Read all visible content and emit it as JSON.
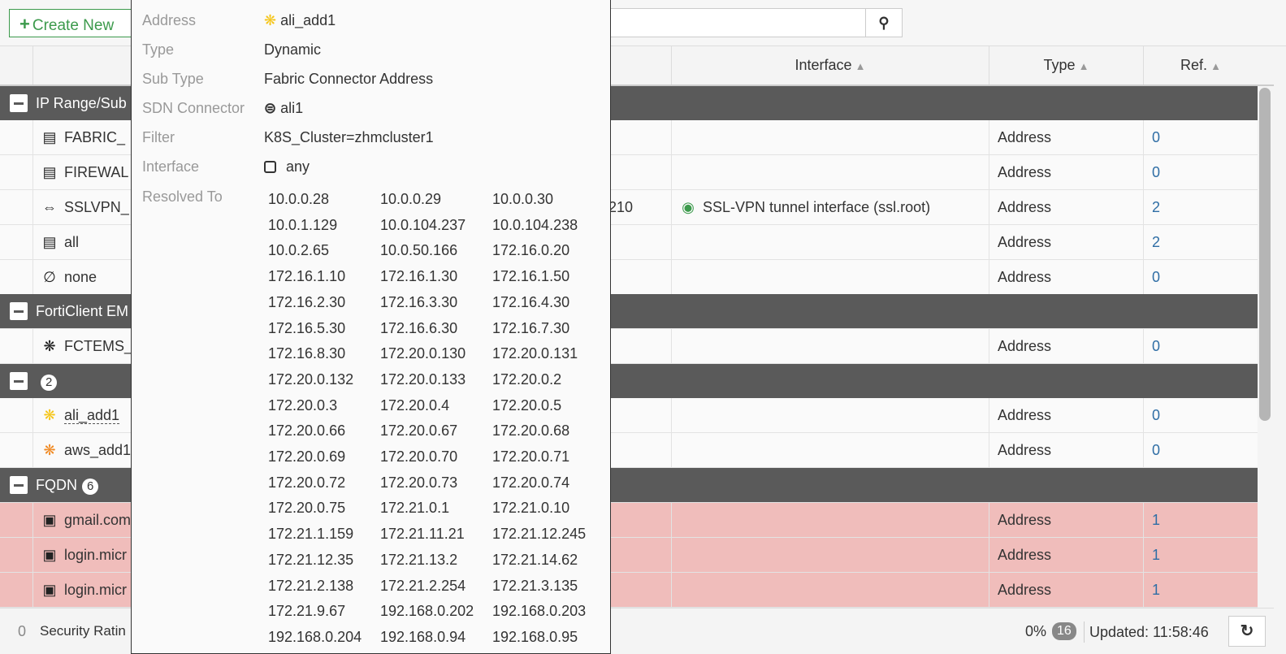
{
  "toolbar": {
    "create_label": "Create New"
  },
  "columns": {
    "interface": "Interface",
    "type": "Type",
    "ref": "Ref."
  },
  "groups": [
    {
      "label": "IP Range/Sub"
    },
    {
      "label": "FortiClient EM"
    },
    {
      "label": "",
      "count": "2"
    },
    {
      "label": "FQDN",
      "count": "6"
    }
  ],
  "rows": [
    {
      "name": "FABRIC_",
      "icon": "address-icon",
      "details": "",
      "interface": "",
      "type": "Address",
      "ref": "0"
    },
    {
      "name": "FIREWAL",
      "icon": "address-icon",
      "details": "",
      "interface": "",
      "type": "Address",
      "ref": "0"
    },
    {
      "name": "SSLVPN_",
      "icon": "iprange-icon",
      "details": "210",
      "interface": "SSL-VPN tunnel interface (ssl.root)",
      "type": "Address",
      "ref": "2"
    },
    {
      "name": "all",
      "icon": "address-icon",
      "details": "",
      "interface": "",
      "type": "Address",
      "ref": "2"
    },
    {
      "name": "none",
      "icon": "none-icon",
      "details": "",
      "interface": "",
      "type": "Address",
      "ref": "0"
    },
    {
      "name": "FCTEMS_",
      "icon": "ems-icon",
      "details": "",
      "interface": "",
      "type": "Address",
      "ref": "0"
    },
    {
      "name": "ali_add1",
      "icon": "dynamic-address-icon",
      "details": "",
      "interface": "",
      "type": "Address",
      "ref": "0"
    },
    {
      "name": "aws_add1",
      "icon": "dynamic-address-icon",
      "details": "",
      "interface": "",
      "type": "Address",
      "ref": "0"
    },
    {
      "name": "gmail.com",
      "icon": "fqdn-icon",
      "details": "",
      "interface": "",
      "type": "Address",
      "ref": "1"
    },
    {
      "name": "login.micr",
      "icon": "fqdn-icon",
      "details": "",
      "interface": "",
      "type": "Address",
      "ref": "1"
    },
    {
      "name": "login.micr",
      "icon": "fqdn-icon",
      "details": "",
      "interface": "",
      "type": "Address",
      "ref": "1"
    }
  ],
  "footer": {
    "security_count": "0",
    "security_label": "Security Ratin",
    "percent": "0%",
    "count": "16",
    "updated": "Updated: 11:58:46"
  },
  "popup": {
    "labels": {
      "address": "Address",
      "type": "Type",
      "sub_type": "Sub Type",
      "sdn": "SDN Connector",
      "filter": "Filter",
      "interface": "Interface",
      "resolved": "Resolved To"
    },
    "address": "ali_add1",
    "type": "Dynamic",
    "sub_type": "Fabric Connector Address",
    "sdn": "ali1",
    "filter": "K8S_Cluster=zhmcluster1",
    "interface": "any",
    "resolved": [
      "10.0.0.28",
      "10.0.0.29",
      "10.0.0.30",
      "10.0.1.129",
      "10.0.104.237",
      "10.0.104.238",
      "10.0.2.65",
      "10.0.50.166",
      "172.16.0.20",
      "172.16.1.10",
      "172.16.1.30",
      "172.16.1.50",
      "172.16.2.30",
      "172.16.3.30",
      "172.16.4.30",
      "172.16.5.30",
      "172.16.6.30",
      "172.16.7.30",
      "172.16.8.30",
      "172.20.0.130",
      "172.20.0.131",
      "172.20.0.132",
      "172.20.0.133",
      "172.20.0.2",
      "172.20.0.3",
      "172.20.0.4",
      "172.20.0.5",
      "172.20.0.66",
      "172.20.0.67",
      "172.20.0.68",
      "172.20.0.69",
      "172.20.0.70",
      "172.20.0.71",
      "172.20.0.72",
      "172.20.0.73",
      "172.20.0.74",
      "172.20.0.75",
      "172.21.0.1",
      "172.21.0.10",
      "172.21.1.159",
      "172.21.11.21",
      "172.21.12.245",
      "172.21.12.35",
      "172.21.13.2",
      "172.21.14.62",
      "172.21.2.138",
      "172.21.2.254",
      "172.21.3.135",
      "172.21.9.67",
      "192.168.0.202",
      "192.168.0.203",
      "192.168.0.204",
      "192.168.0.94",
      "192.168.0.95"
    ]
  },
  "colors": {
    "group": "#5a5a5a",
    "error_row": "#f0bdbb",
    "link": "#2f6ea5",
    "accent": "#3c9a4c",
    "dynamic_icon": "#f5c518"
  }
}
